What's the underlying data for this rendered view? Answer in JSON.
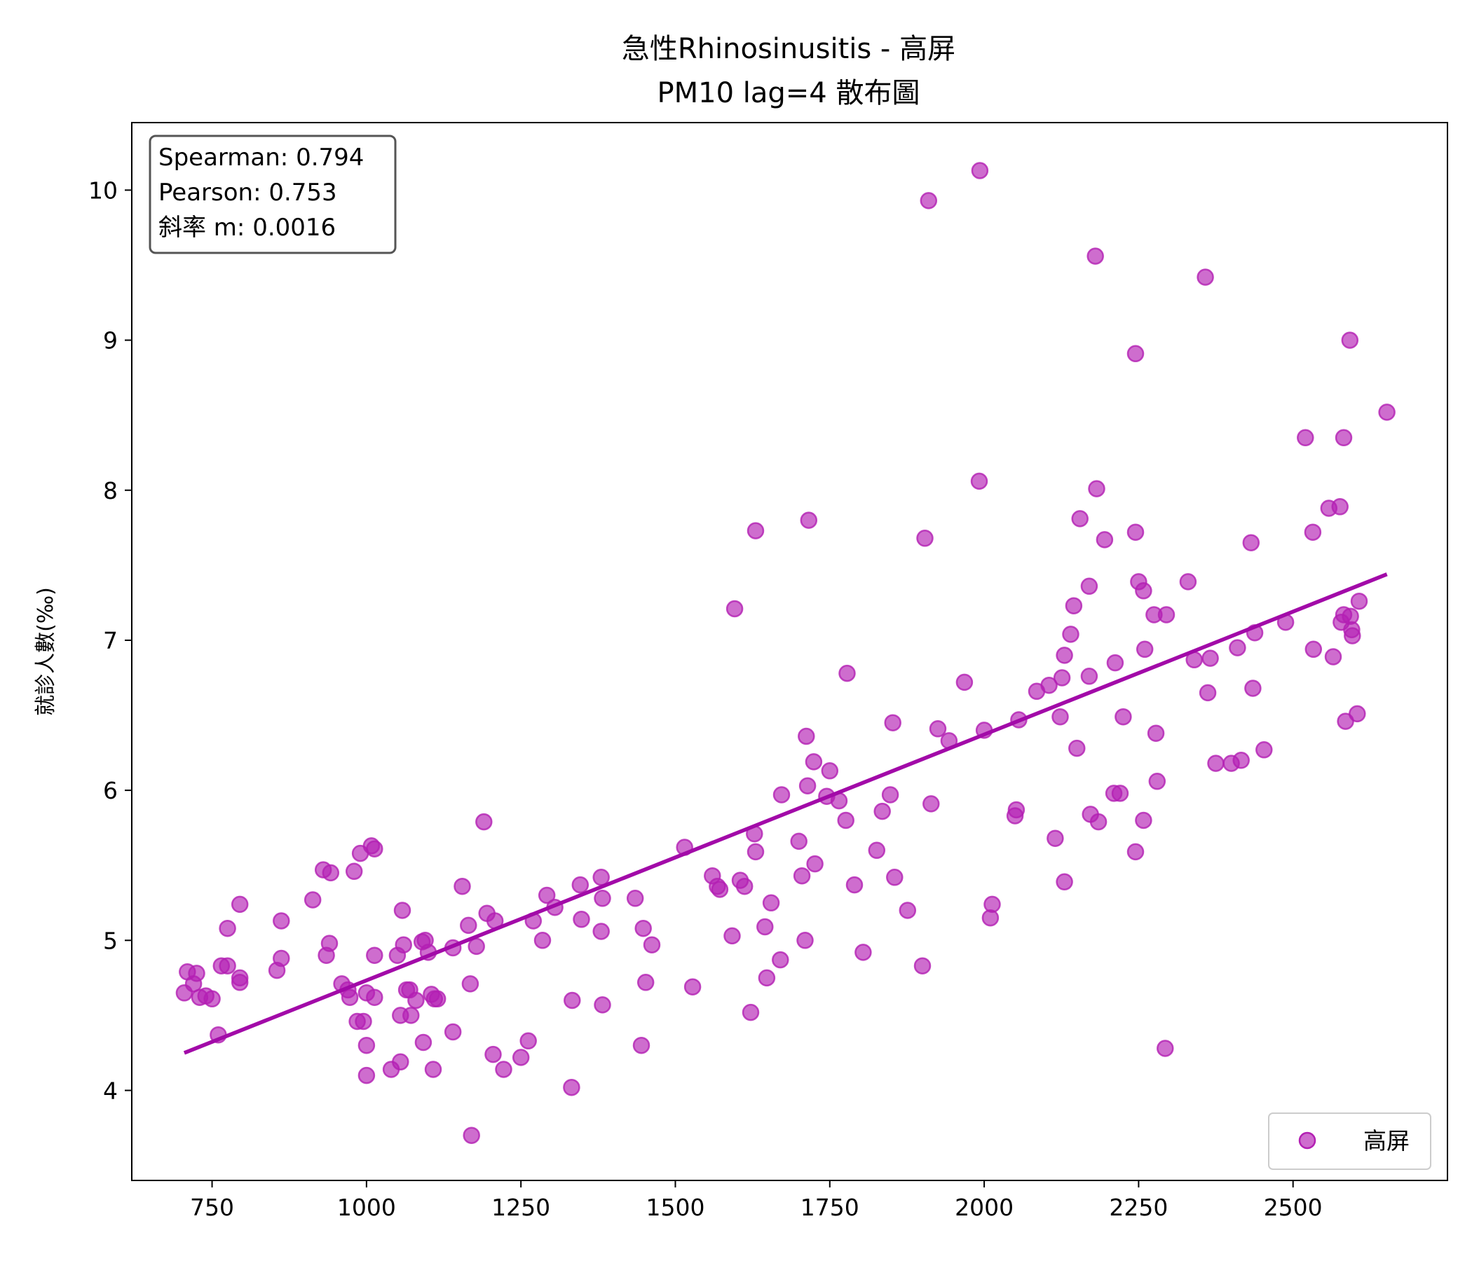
{
  "title_line1": "急性Rhinosinusitis - 高屏",
  "title_line2": "PM10 lag=4 散布圖",
  "stats": {
    "spearman": "Spearman: 0.794",
    "pearson": "Pearson: 0.753",
    "slope": "斜率 m: 0.0016"
  },
  "legend_label": "高屏",
  "colors": {
    "point": "#b31fb3",
    "line": "#a20aa8"
  },
  "chart_data": {
    "type": "scatter",
    "title": "急性Rhinosinusitis - 高屏\nPM10 lag=4 散布圖",
    "xlabel": "",
    "ylabel": "就診人數(‰)",
    "xlim": [
      620,
      2750
    ],
    "ylim": [
      3.4,
      10.45
    ],
    "xticks": [
      750,
      1000,
      1250,
      1500,
      1750,
      2000,
      2250,
      2500
    ],
    "yticks": [
      4,
      5,
      6,
      7,
      8,
      9,
      10
    ],
    "grid": false,
    "legend_position": "bottom-right",
    "series": [
      {
        "name": "高屏",
        "points": [
          [
            710,
            4.79
          ],
          [
            720,
            4.71
          ],
          [
            725,
            4.78
          ],
          [
            705,
            4.65
          ],
          [
            730,
            4.62
          ],
          [
            740,
            4.63
          ],
          [
            750,
            4.61
          ],
          [
            760,
            4.37
          ],
          [
            765,
            4.83
          ],
          [
            775,
            4.83
          ],
          [
            775,
            5.08
          ],
          [
            795,
            4.72
          ],
          [
            795,
            4.75
          ],
          [
            795,
            5.24
          ],
          [
            855,
            4.8
          ],
          [
            862,
            4.88
          ],
          [
            862,
            5.13
          ],
          [
            913,
            5.27
          ],
          [
            930,
            5.47
          ],
          [
            935,
            4.9
          ],
          [
            940,
            4.98
          ],
          [
            942,
            5.45
          ],
          [
            960,
            4.71
          ],
          [
            970,
            4.67
          ],
          [
            973,
            4.62
          ],
          [
            980,
            5.46
          ],
          [
            985,
            4.46
          ],
          [
            990,
            5.58
          ],
          [
            995,
            4.46
          ],
          [
            1000,
            4.3
          ],
          [
            1000,
            4.1
          ],
          [
            1000,
            4.65
          ],
          [
            1008,
            5.63
          ],
          [
            1013,
            5.61
          ],
          [
            1013,
            4.62
          ],
          [
            1013,
            4.9
          ],
          [
            1040,
            4.14
          ],
          [
            1050,
            4.9
          ],
          [
            1055,
            4.19
          ],
          [
            1055,
            4.5
          ],
          [
            1058,
            5.2
          ],
          [
            1060,
            4.97
          ],
          [
            1065,
            4.67
          ],
          [
            1072,
            4.5
          ],
          [
            1070,
            4.67
          ],
          [
            1080,
            4.6
          ],
          [
            1090,
            4.99
          ],
          [
            1092,
            4.32
          ],
          [
            1095,
            5.0
          ],
          [
            1100,
            4.92
          ],
          [
            1105,
            4.64
          ],
          [
            1108,
            4.14
          ],
          [
            1110,
            4.61
          ],
          [
            1115,
            4.61
          ],
          [
            1140,
            4.95
          ],
          [
            1140,
            4.39
          ],
          [
            1155,
            5.36
          ],
          [
            1165,
            5.1
          ],
          [
            1168,
            4.71
          ],
          [
            1170,
            3.7
          ],
          [
            1178,
            4.96
          ],
          [
            1190,
            5.79
          ],
          [
            1195,
            5.18
          ],
          [
            1205,
            4.24
          ],
          [
            1208,
            5.13
          ],
          [
            1222,
            4.14
          ],
          [
            1250,
            4.22
          ],
          [
            1262,
            4.33
          ],
          [
            1270,
            5.13
          ],
          [
            1285,
            5.0
          ],
          [
            1292,
            5.3
          ],
          [
            1305,
            5.22
          ],
          [
            1332,
            4.02
          ],
          [
            1333,
            4.6
          ],
          [
            1346,
            5.37
          ],
          [
            1348,
            5.14
          ],
          [
            1380,
            5.06
          ],
          [
            1380,
            5.42
          ],
          [
            1382,
            5.28
          ],
          [
            1382,
            4.57
          ],
          [
            1435,
            5.28
          ],
          [
            1445,
            4.3
          ],
          [
            1448,
            5.08
          ],
          [
            1452,
            4.72
          ],
          [
            1462,
            4.97
          ],
          [
            1515,
            5.62
          ],
          [
            1528,
            4.69
          ],
          [
            1560,
            5.43
          ],
          [
            1568,
            5.36
          ],
          [
            1572,
            5.34
          ],
          [
            1592,
            5.03
          ],
          [
            1596,
            7.21
          ],
          [
            1605,
            5.4
          ],
          [
            1612,
            5.36
          ],
          [
            1622,
            4.52
          ],
          [
            1628,
            5.71
          ],
          [
            1630,
            5.59
          ],
          [
            1630,
            7.73
          ],
          [
            1645,
            5.09
          ],
          [
            1648,
            4.75
          ],
          [
            1655,
            5.25
          ],
          [
            1670,
            4.87
          ],
          [
            1672,
            5.97
          ],
          [
            1700,
            5.66
          ],
          [
            1705,
            5.43
          ],
          [
            1710,
            5.0
          ],
          [
            1712,
            6.36
          ],
          [
            1714,
            6.03
          ],
          [
            1716,
            7.8
          ],
          [
            1724,
            6.19
          ],
          [
            1726,
            5.51
          ],
          [
            1745,
            5.96
          ],
          [
            1750,
            6.13
          ],
          [
            1765,
            5.93
          ],
          [
            1776,
            5.8
          ],
          [
            1778,
            6.78
          ],
          [
            1790,
            5.37
          ],
          [
            1804,
            4.92
          ],
          [
            1826,
            5.6
          ],
          [
            1835,
            5.86
          ],
          [
            1848,
            5.97
          ],
          [
            1852,
            6.45
          ],
          [
            1855,
            5.42
          ],
          [
            1876,
            5.2
          ],
          [
            1900,
            4.83
          ],
          [
            1904,
            7.68
          ],
          [
            1910,
            9.93
          ],
          [
            1914,
            5.91
          ],
          [
            1925,
            6.41
          ],
          [
            1943,
            6.33
          ],
          [
            1968,
            6.72
          ],
          [
            1992,
            8.06
          ],
          [
            1993,
            10.13
          ],
          [
            2000,
            6.4
          ],
          [
            2010,
            5.15
          ],
          [
            2013,
            5.24
          ],
          [
            2050,
            5.83
          ],
          [
            2052,
            5.87
          ],
          [
            2056,
            6.47
          ],
          [
            2085,
            6.66
          ],
          [
            2105,
            6.7
          ],
          [
            2115,
            5.68
          ],
          [
            2123,
            6.49
          ],
          [
            2126,
            6.75
          ],
          [
            2130,
            5.39
          ],
          [
            2130,
            6.9
          ],
          [
            2140,
            7.04
          ],
          [
            2145,
            7.23
          ],
          [
            2150,
            6.28
          ],
          [
            2155,
            7.81
          ],
          [
            2170,
            6.76
          ],
          [
            2170,
            7.36
          ],
          [
            2172,
            5.84
          ],
          [
            2180,
            9.56
          ],
          [
            2182,
            8.01
          ],
          [
            2185,
            5.79
          ],
          [
            2195,
            7.67
          ],
          [
            2210,
            5.98
          ],
          [
            2212,
            6.85
          ],
          [
            2220,
            5.98
          ],
          [
            2225,
            6.49
          ],
          [
            2245,
            8.91
          ],
          [
            2245,
            7.72
          ],
          [
            2245,
            5.59
          ],
          [
            2250,
            7.39
          ],
          [
            2258,
            7.33
          ],
          [
            2258,
            5.8
          ],
          [
            2260,
            6.94
          ],
          [
            2275,
            7.17
          ],
          [
            2278,
            6.38
          ],
          [
            2280,
            6.06
          ],
          [
            2293,
            4.28
          ],
          [
            2295,
            7.17
          ],
          [
            2330,
            7.39
          ],
          [
            2340,
            6.87
          ],
          [
            2358,
            9.42
          ],
          [
            2362,
            6.65
          ],
          [
            2366,
            6.88
          ],
          [
            2375,
            6.18
          ],
          [
            2400,
            6.18
          ],
          [
            2410,
            6.95
          ],
          [
            2416,
            6.2
          ],
          [
            2432,
            7.65
          ],
          [
            2435,
            6.68
          ],
          [
            2438,
            7.05
          ],
          [
            2453,
            6.27
          ],
          [
            2488,
            7.12
          ],
          [
            2520,
            8.35
          ],
          [
            2532,
            7.72
          ],
          [
            2533,
            6.94
          ],
          [
            2558,
            7.88
          ],
          [
            2565,
            6.89
          ],
          [
            2576,
            7.89
          ],
          [
            2578,
            7.12
          ],
          [
            2582,
            8.35
          ],
          [
            2585,
            6.46
          ],
          [
            2582,
            7.17
          ],
          [
            2592,
            9.0
          ],
          [
            2593,
            7.16
          ],
          [
            2595,
            7.07
          ],
          [
            2596,
            7.03
          ],
          [
            2604,
            6.51
          ],
          [
            2607,
            7.26
          ],
          [
            2652,
            8.52
          ]
        ]
      }
    ],
    "trendline": {
      "x": [
        705,
        2652
      ],
      "y": [
        4.25,
        7.44
      ]
    }
  }
}
